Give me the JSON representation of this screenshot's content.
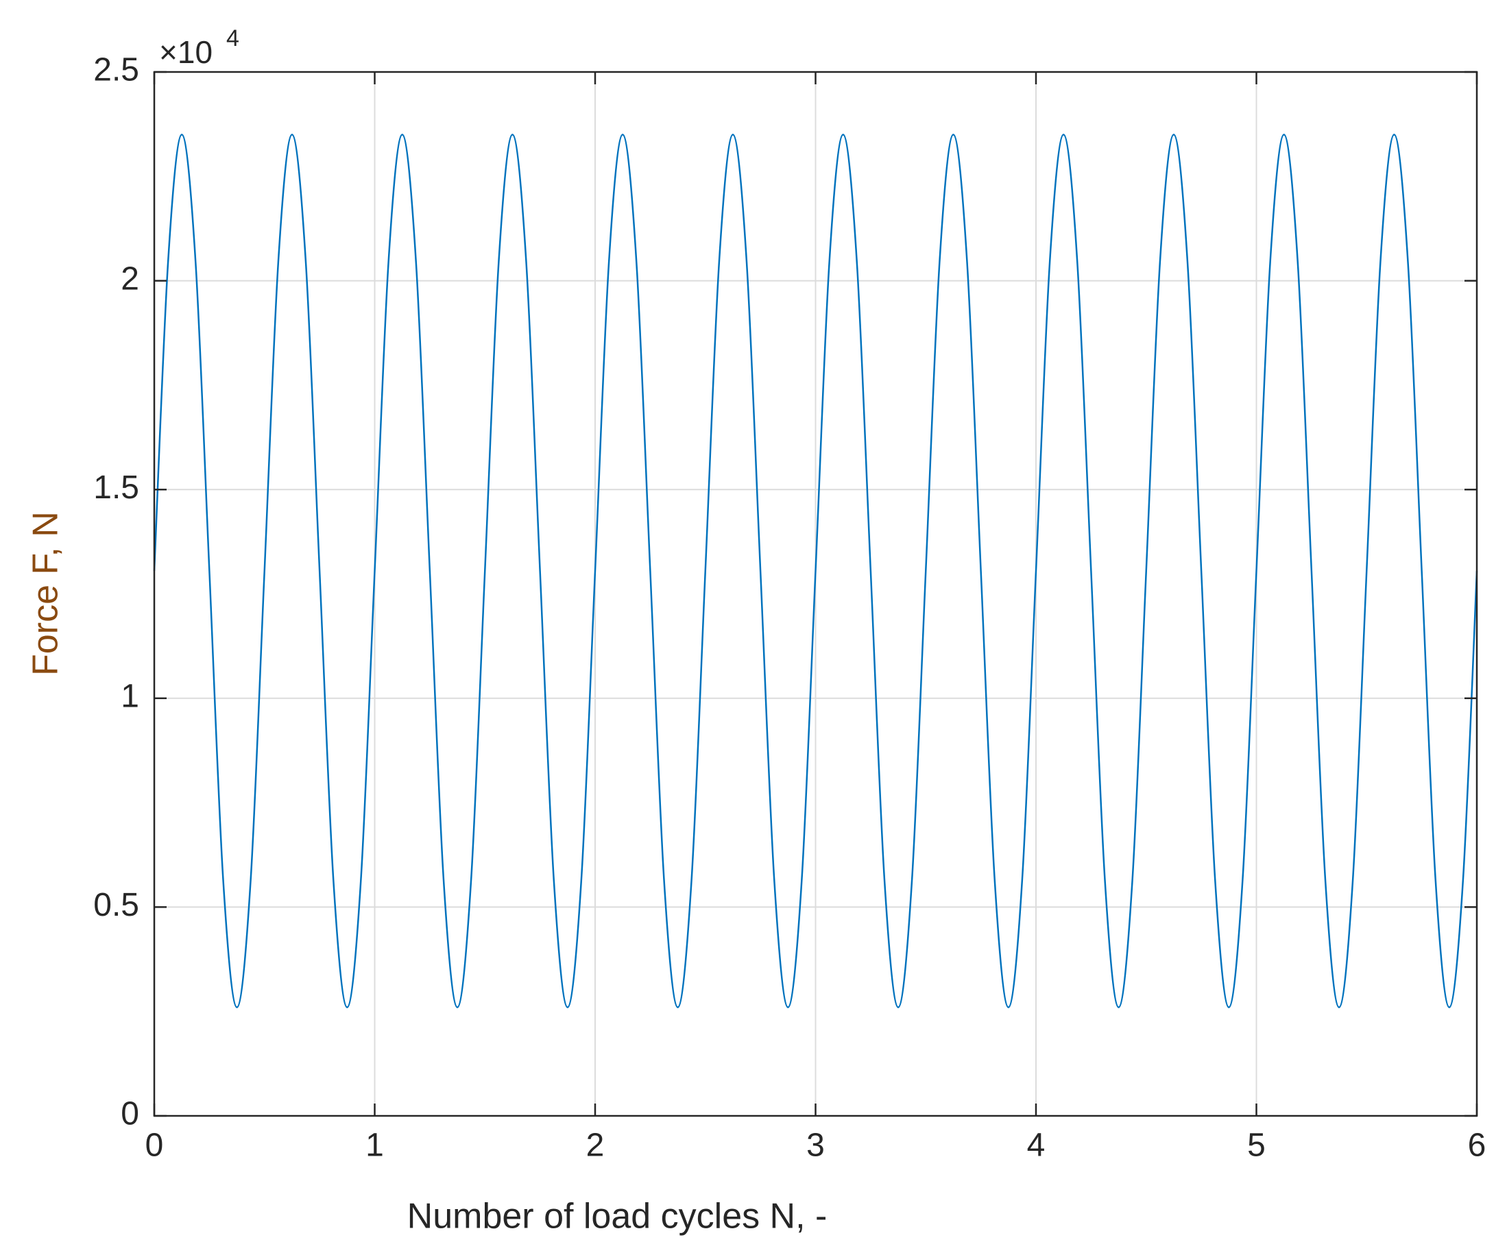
{
  "chart_data": {
    "type": "line",
    "xlabel": "Number of load cycles N, -",
    "ylabel": "Force F, N",
    "y_multiplier": "×10",
    "y_multiplier_exponent": "4",
    "x": [
      0,
      0.0625,
      0.125,
      0.1875,
      0.25,
      0.3125,
      0.375,
      0.4375,
      0.5,
      0.5625,
      0.625,
      0.6875,
      0.75,
      0.8125,
      0.875,
      0.9375,
      1,
      1.0625,
      1.125,
      1.1875,
      1.25,
      1.3125,
      1.375,
      1.4375,
      1.5,
      1.5625,
      1.625,
      1.6875,
      1.75,
      1.8125,
      1.875,
      1.9375,
      2,
      2.0625,
      2.125,
      2.1875,
      2.25,
      2.3125,
      2.375,
      2.4375,
      2.5,
      2.5625,
      2.625,
      2.6875,
      2.75,
      2.8125,
      2.875,
      2.9375,
      3,
      3.0625,
      3.125,
      3.1875,
      3.25,
      3.3125,
      3.375,
      3.4375,
      3.5,
      3.5625,
      3.625,
      3.6875,
      3.75,
      3.8125,
      3.875,
      3.9375,
      4,
      4.0625,
      4.125,
      4.1875,
      4.25,
      4.3125,
      4.375,
      4.4375,
      4.5,
      4.5625,
      4.625,
      4.6875,
      4.75,
      4.8125,
      4.875,
      4.9375,
      5,
      5.0625,
      5.125,
      5.1875,
      5.25,
      5.3125,
      5.375,
      5.4375,
      5.5,
      5.5625,
      5.625,
      5.6875,
      5.75,
      5.8125,
      5.875,
      5.9375,
      6
    ],
    "values": [
      13050,
      20440,
      23500,
      20440,
      13050,
      5660,
      2600,
      5660,
      13050,
      20440,
      23500,
      20440,
      13050,
      5660,
      2600,
      5660,
      13050,
      20440,
      23500,
      20440,
      13050,
      5660,
      2600,
      5660,
      13050,
      20440,
      23500,
      20440,
      13050,
      5660,
      2600,
      5660,
      13050,
      20440,
      23500,
      20440,
      13050,
      5660,
      2600,
      5660,
      13050,
      20440,
      23500,
      20440,
      13050,
      5660,
      2600,
      5660,
      13050,
      20440,
      23500,
      20440,
      13050,
      5660,
      2600,
      5660,
      13050,
      20440,
      23500,
      20440,
      13050,
      5660,
      2600,
      5660,
      13050,
      20440,
      23500,
      20440,
      13050,
      5660,
      2600,
      5660,
      13050,
      20440,
      23500,
      20440,
      13050,
      5660,
      2600,
      5660,
      13050,
      20440,
      23500,
      20440,
      13050,
      5660,
      2600,
      5660,
      13050,
      20440,
      23500,
      20440,
      13050,
      5660,
      2600,
      5660,
      13050
    ],
    "color": "#0072bd",
    "xlim": [
      0,
      6
    ],
    "xticks": [
      0,
      1,
      2,
      3,
      4,
      5,
      6
    ],
    "ylim": [
      0,
      25000
    ],
    "yticks": [
      0,
      {
        "value": 5000,
        "label": "0.5"
      },
      {
        "value": 10000,
        "label": "1"
      },
      {
        "value": 15000,
        "label": "1.5"
      },
      {
        "value": 20000,
        "label": "2"
      },
      {
        "value": 25000,
        "label": "2.5"
      }
    ],
    "grid": true
  }
}
